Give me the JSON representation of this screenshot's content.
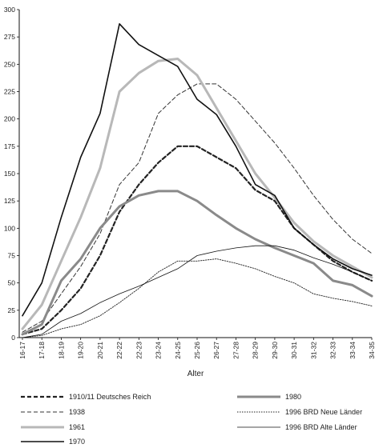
{
  "chart_data": {
    "type": "line",
    "title": "",
    "xlabel": "Alter",
    "ylabel": "",
    "ylim": [
      0,
      300
    ],
    "y_ticks": [
      0,
      25,
      50,
      75,
      100,
      125,
      150,
      175,
      200,
      225,
      250,
      275,
      300
    ],
    "grid": false,
    "legend_position": "bottom",
    "categories": [
      "16-17",
      "17-18",
      "18-19",
      "19-20",
      "20-21",
      "22-22",
      "22-23",
      "23-24",
      "24-25",
      "25-26",
      "26-27",
      "27-28",
      "28-29",
      "29-30",
      "30-31",
      "31-32",
      "32-33",
      "33-34",
      "34-35"
    ],
    "series": [
      {
        "name": "1910/11 Deutsches Reich",
        "color": "#222222",
        "stroke_width": 2.2,
        "dash": "5,3",
        "values": [
          3,
          8,
          25,
          45,
          75,
          115,
          140,
          160,
          175,
          175,
          165,
          155,
          135,
          125,
          100,
          85,
          70,
          60,
          52
        ]
      },
      {
        "name": "1938",
        "color": "#333333",
        "stroke_width": 1,
        "dash": "5,3",
        "values": [
          5,
          15,
          40,
          65,
          95,
          140,
          160,
          205,
          222,
          232,
          232,
          218,
          198,
          178,
          155,
          130,
          108,
          90,
          77
        ]
      },
      {
        "name": "1961",
        "color": "#b8b8b8",
        "stroke_width": 3,
        "dash": "",
        "values": [
          8,
          30,
          70,
          110,
          155,
          225,
          242,
          253,
          255,
          240,
          210,
          180,
          150,
          128,
          105,
          88,
          75,
          65,
          55
        ]
      },
      {
        "name": "1970",
        "color": "#111111",
        "stroke_width": 1.6,
        "dash": "",
        "values": [
          20,
          50,
          110,
          165,
          205,
          287,
          268,
          258,
          248,
          218,
          204,
          175,
          140,
          130,
          100,
          85,
          72,
          63,
          57
        ]
      },
      {
        "name": "1980",
        "color": "#8a8a8a",
        "stroke_width": 3,
        "dash": "",
        "values": [
          3,
          12,
          52,
          72,
          100,
          120,
          130,
          134,
          134,
          125,
          112,
          100,
          90,
          82,
          75,
          68,
          52,
          48,
          38
        ]
      },
      {
        "name": "1996 BRD Neue Länder",
        "color": "#222222",
        "stroke_width": 0.9,
        "dash": "1.5,1.5",
        "values": [
          0,
          2,
          8,
          12,
          20,
          32,
          45,
          60,
          70,
          70,
          72,
          68,
          63,
          56,
          50,
          40,
          36,
          33,
          29
        ]
      },
      {
        "name": "1996 BRD Alte Länder",
        "color": "#111111",
        "stroke_width": 0.8,
        "dash": "",
        "values": [
          0,
          3,
          15,
          22,
          32,
          40,
          47,
          55,
          63,
          75,
          79,
          82,
          84,
          84,
          80,
          73,
          67,
          60,
          52
        ]
      }
    ],
    "legend_columns": [
      [
        "1910/11 Deutsches Reich",
        "1938",
        "1961",
        "1970"
      ],
      [
        "1980",
        "1996 BRD Neue Länder",
        "1996 BRD Alte Länder"
      ]
    ]
  }
}
